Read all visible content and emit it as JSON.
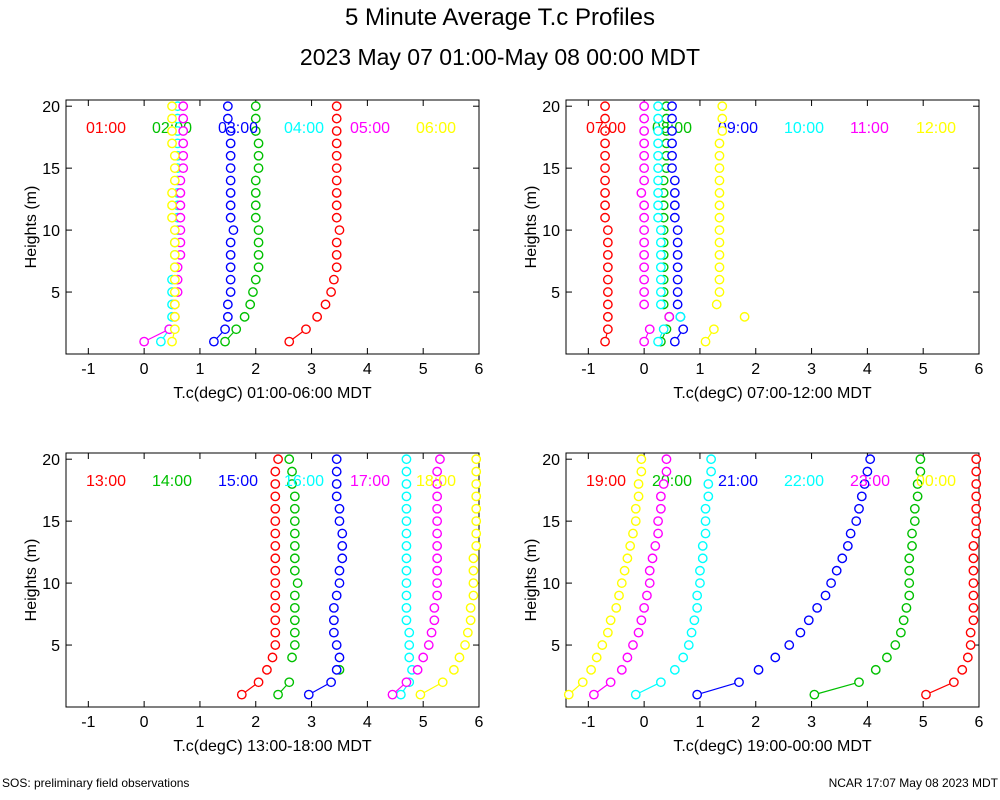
{
  "title": "5 Minute Average T.c Profiles",
  "subtitle": "2023 May 07 01:00-May 08 00:00 MDT",
  "footer_left": "SOS: preliminary field observations",
  "footer_right": "NCAR 17:07 May 08 2023 MDT",
  "colors": [
    "#ff0000",
    "#00c000",
    "#0000ff",
    "#00ffff",
    "#ff00ff",
    "#ffff00"
  ],
  "chart_data": [
    {
      "type": "scatter",
      "xlabel": "T.c(degC) 01:00-06:00 MDT",
      "ylabel": "Heights (m)",
      "xlim": [
        -1.4,
        6
      ],
      "ylim": [
        0,
        20.5
      ],
      "xticks": [
        -1,
        0,
        1,
        2,
        3,
        4,
        5,
        6
      ],
      "yticks": [
        5,
        10,
        15,
        20
      ],
      "heights": [
        1,
        2,
        3,
        4,
        5,
        6,
        7,
        8,
        9,
        10,
        11,
        12,
        13,
        14,
        15,
        16,
        17,
        18,
        19,
        20
      ],
      "series": [
        {
          "name": "01:00",
          "values": [
            2.6,
            2.9,
            3.1,
            3.25,
            3.35,
            3.4,
            3.45,
            3.45,
            3.45,
            3.5,
            3.45,
            3.45,
            3.45,
            3.45,
            3.45,
            3.45,
            3.45,
            3.45,
            3.45,
            3.45
          ]
        },
        {
          "name": "02:00",
          "values": [
            1.45,
            1.65,
            1.8,
            1.9,
            1.95,
            2.0,
            2.05,
            2.05,
            2.05,
            2.05,
            2.0,
            2.0,
            2.0,
            2.0,
            2.05,
            2.05,
            2.05,
            2.0,
            2.0,
            2.0
          ]
        },
        {
          "name": "03:00",
          "values": [
            1.25,
            1.45,
            1.5,
            1.5,
            1.55,
            1.55,
            1.55,
            1.55,
            1.55,
            1.6,
            1.55,
            1.55,
            1.55,
            1.55,
            1.55,
            1.55,
            1.55,
            1.55,
            1.5,
            1.5
          ]
        },
        {
          "name": "04:00",
          "values": [
            0.3,
            0.45,
            0.5,
            0.5,
            0.5,
            0.5,
            0.55,
            0.55,
            0.55,
            0.6,
            0.6,
            0.6,
            0.6,
            0.6,
            0.6,
            0.6,
            0.6,
            0.6,
            0.6,
            0.6
          ]
        },
        {
          "name": "05:00",
          "values": [
            0.0,
            0.45,
            0.55,
            0.55,
            0.6,
            0.6,
            0.6,
            0.65,
            0.65,
            0.65,
            0.65,
            0.65,
            0.65,
            0.65,
            0.7,
            0.7,
            0.7,
            0.7,
            0.7,
            0.7
          ]
        },
        {
          "name": "06:00",
          "values": [
            0.5,
            0.55,
            0.55,
            0.55,
            0.55,
            0.55,
            0.55,
            0.55,
            0.55,
            0.55,
            0.5,
            0.5,
            0.5,
            0.55,
            0.55,
            0.55,
            0.5,
            0.5,
            0.5,
            0.5
          ]
        }
      ]
    },
    {
      "type": "scatter",
      "xlabel": "T.c(degC) 07:00-12:00 MDT",
      "ylabel": "Heights (m)",
      "xlim": [
        -1.4,
        6
      ],
      "ylim": [
        0,
        20.5
      ],
      "xticks": [
        -1,
        0,
        1,
        2,
        3,
        4,
        5,
        6
      ],
      "yticks": [
        5,
        10,
        15,
        20
      ],
      "heights": [
        1,
        2,
        3,
        4,
        5,
        6,
        7,
        8,
        9,
        10,
        11,
        12,
        13,
        14,
        15,
        16,
        17,
        18,
        19,
        20
      ],
      "series": [
        {
          "name": "07:00",
          "values": [
            -0.7,
            -0.65,
            -0.65,
            -0.65,
            -0.65,
            -0.65,
            -0.65,
            -0.65,
            -0.65,
            -0.65,
            -0.7,
            -0.7,
            -0.7,
            -0.7,
            -0.7,
            -0.7,
            -0.7,
            -0.7,
            -0.7,
            -0.7
          ]
        },
        {
          "name": "08:00",
          "values": [
            0.3,
            0.4,
            0.45,
            0.35,
            0.35,
            0.35,
            0.35,
            0.35,
            0.35,
            0.35,
            0.35,
            0.35,
            0.35,
            0.35,
            0.4,
            0.4,
            0.4,
            0.4,
            0.4,
            0.4
          ]
        },
        {
          "name": "09:00",
          "values": [
            0.55,
            0.7,
            0.65,
            0.6,
            0.6,
            0.6,
            0.6,
            0.6,
            0.6,
            0.6,
            0.55,
            0.55,
            0.55,
            0.55,
            0.5,
            0.5,
            0.5,
            0.5,
            0.5,
            0.5
          ]
        },
        {
          "name": "10:00",
          "values": [
            0.25,
            0.35,
            0.65,
            0.3,
            0.3,
            0.3,
            0.3,
            0.3,
            0.3,
            0.3,
            0.25,
            0.25,
            0.25,
            0.25,
            0.25,
            0.25,
            0.25,
            0.25,
            0.25,
            0.25
          ]
        },
        {
          "name": "11:00",
          "values": [
            0.0,
            0.1,
            0.45,
            0.0,
            0.0,
            0.0,
            0.0,
            0.0,
            0.0,
            0.0,
            0.0,
            0.0,
            -0.05,
            0.0,
            0.0,
            0.0,
            0.0,
            0.0,
            0.0,
            0.0
          ]
        },
        {
          "name": "12:00",
          "values": [
            1.1,
            1.25,
            1.8,
            1.3,
            1.35,
            1.35,
            1.35,
            1.35,
            1.35,
            1.35,
            1.35,
            1.35,
            1.35,
            1.35,
            1.35,
            1.35,
            1.35,
            1.4,
            1.4,
            1.4
          ]
        }
      ]
    },
    {
      "type": "scatter",
      "xlabel": "T.c(degC) 13:00-18:00 MDT",
      "ylabel": "Heights (m)",
      "xlim": [
        -1.4,
        6
      ],
      "ylim": [
        0,
        20.5
      ],
      "xticks": [
        -1,
        0,
        1,
        2,
        3,
        4,
        5,
        6
      ],
      "yticks": [
        5,
        10,
        15,
        20
      ],
      "heights": [
        1,
        2,
        3,
        4,
        5,
        6,
        7,
        8,
        9,
        10,
        11,
        12,
        13,
        14,
        15,
        16,
        17,
        18,
        19,
        20
      ],
      "series": [
        {
          "name": "13:00",
          "values": [
            1.75,
            2.05,
            2.2,
            2.3,
            2.35,
            2.35,
            2.35,
            2.35,
            2.35,
            2.35,
            2.35,
            2.35,
            2.35,
            2.35,
            2.35,
            2.35,
            2.35,
            2.35,
            2.35,
            2.4
          ]
        },
        {
          "name": "14:00",
          "values": [
            2.4,
            2.6,
            3.5,
            2.65,
            2.7,
            2.7,
            2.7,
            2.7,
            2.7,
            2.75,
            2.7,
            2.7,
            2.7,
            2.7,
            2.7,
            2.7,
            2.7,
            2.65,
            2.65,
            2.6
          ]
        },
        {
          "name": "15:00",
          "values": [
            2.95,
            3.35,
            3.45,
            3.5,
            3.45,
            3.4,
            3.4,
            3.4,
            3.45,
            3.5,
            3.5,
            3.55,
            3.55,
            3.55,
            3.5,
            3.5,
            3.45,
            3.45,
            3.45,
            3.45
          ]
        },
        {
          "name": "16:00",
          "values": [
            4.6,
            4.75,
            4.8,
            4.75,
            4.75,
            4.75,
            4.7,
            4.7,
            4.7,
            4.7,
            4.7,
            4.7,
            4.7,
            4.7,
            4.7,
            4.7,
            4.7,
            4.7,
            4.7,
            4.7
          ]
        },
        {
          "name": "17:00",
          "values": [
            4.45,
            4.7,
            4.9,
            5.0,
            5.1,
            5.15,
            5.2,
            5.2,
            5.25,
            5.25,
            5.25,
            5.25,
            5.25,
            5.25,
            5.25,
            5.25,
            5.25,
            5.25,
            5.25,
            5.3
          ]
        },
        {
          "name": "18:00",
          "values": [
            4.95,
            5.35,
            5.55,
            5.65,
            5.75,
            5.8,
            5.85,
            5.85,
            5.9,
            5.9,
            5.9,
            5.9,
            5.95,
            5.95,
            5.95,
            5.95,
            5.95,
            5.95,
            5.95,
            5.95
          ]
        }
      ]
    },
    {
      "type": "scatter",
      "xlabel": "T.c(degC) 19:00-00:00 MDT",
      "ylabel": "Heights (m)",
      "xlim": [
        -1.4,
        6
      ],
      "ylim": [
        0,
        20.5
      ],
      "xticks": [
        -1,
        0,
        1,
        2,
        3,
        4,
        5,
        6
      ],
      "yticks": [
        5,
        10,
        15,
        20
      ],
      "heights": [
        1,
        2,
        3,
        4,
        5,
        6,
        7,
        8,
        9,
        10,
        11,
        12,
        13,
        14,
        15,
        16,
        17,
        18,
        19,
        20
      ],
      "series": [
        {
          "name": "19:00",
          "values": [
            5.05,
            5.55,
            5.7,
            5.8,
            5.85,
            5.85,
            5.9,
            5.9,
            5.9,
            5.9,
            5.9,
            5.9,
            5.9,
            5.95,
            5.95,
            5.95,
            5.95,
            5.95,
            5.95,
            5.95
          ]
        },
        {
          "name": "20:00",
          "values": [
            3.05,
            3.85,
            4.15,
            4.35,
            4.5,
            4.6,
            4.65,
            4.7,
            4.75,
            4.75,
            4.75,
            4.75,
            4.8,
            4.8,
            4.85,
            4.85,
            4.9,
            4.9,
            4.95,
            4.95
          ]
        },
        {
          "name": "21:00",
          "values": [
            0.95,
            1.7,
            2.05,
            2.35,
            2.6,
            2.8,
            2.95,
            3.1,
            3.25,
            3.35,
            3.45,
            3.55,
            3.65,
            3.7,
            3.8,
            3.85,
            3.9,
            3.95,
            4.0,
            4.05
          ]
        },
        {
          "name": "22:00",
          "values": [
            -0.15,
            0.3,
            0.55,
            0.7,
            0.8,
            0.85,
            0.9,
            0.95,
            0.95,
            1.0,
            1.0,
            1.05,
            1.05,
            1.1,
            1.1,
            1.1,
            1.15,
            1.15,
            1.2,
            1.2
          ]
        },
        {
          "name": "23:00",
          "values": [
            -0.9,
            -0.6,
            -0.4,
            -0.3,
            -0.2,
            -0.1,
            -0.05,
            0.0,
            0.05,
            0.1,
            0.1,
            0.15,
            0.2,
            0.25,
            0.25,
            0.3,
            0.3,
            0.35,
            0.4,
            0.4
          ]
        },
        {
          "name": "00:00",
          "values": [
            -1.35,
            -1.1,
            -0.95,
            -0.85,
            -0.75,
            -0.65,
            -0.6,
            -0.5,
            -0.45,
            -0.4,
            -0.35,
            -0.3,
            -0.25,
            -0.2,
            -0.15,
            -0.15,
            -0.1,
            -0.1,
            -0.05,
            -0.05
          ]
        }
      ]
    }
  ]
}
